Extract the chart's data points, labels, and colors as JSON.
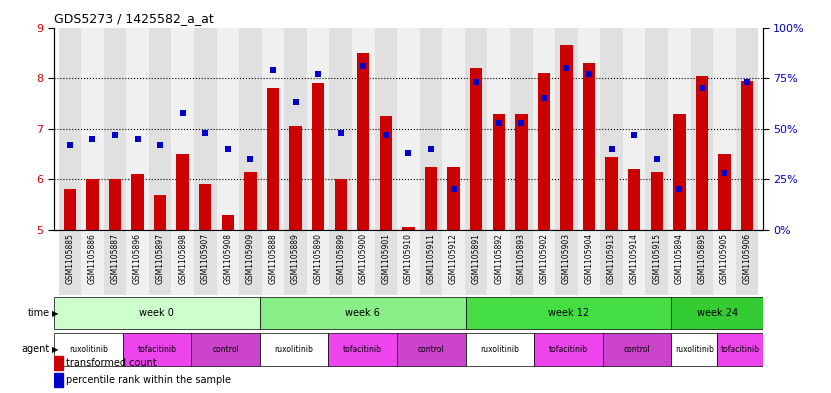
{
  "title": "GDS5273 / 1425582_a_at",
  "samples": [
    "GSM1105885",
    "GSM1105886",
    "GSM1105887",
    "GSM1105896",
    "GSM1105897",
    "GSM1105898",
    "GSM1105907",
    "GSM1105908",
    "GSM1105909",
    "GSM1105888",
    "GSM1105889",
    "GSM1105890",
    "GSM1105899",
    "GSM1105900",
    "GSM1105901",
    "GSM1105910",
    "GSM1105911",
    "GSM1105912",
    "GSM1105891",
    "GSM1105892",
    "GSM1105893",
    "GSM1105902",
    "GSM1105903",
    "GSM1105904",
    "GSM1105913",
    "GSM1105914",
    "GSM1105915",
    "GSM1105894",
    "GSM1105895",
    "GSM1105905",
    "GSM1105906"
  ],
  "bar_values": [
    5.8,
    6.0,
    6.0,
    6.1,
    5.7,
    6.5,
    5.9,
    5.3,
    6.15,
    7.8,
    7.05,
    7.9,
    6.0,
    8.5,
    7.25,
    5.05,
    6.25,
    6.25,
    8.2,
    7.3,
    7.3,
    8.1,
    8.65,
    8.3,
    6.45,
    6.2,
    6.15,
    7.3,
    8.05,
    6.5,
    7.95
  ],
  "dot_values": [
    42,
    45,
    47,
    45,
    42,
    58,
    48,
    40,
    35,
    79,
    63,
    77,
    48,
    81,
    47,
    38,
    40,
    20,
    73,
    53,
    53,
    65,
    80,
    77,
    40,
    47,
    35,
    20,
    70,
    28,
    73
  ],
  "ylim_left": [
    5,
    9
  ],
  "ylim_right": [
    0,
    100
  ],
  "yticks_left": [
    5,
    6,
    7,
    8,
    9
  ],
  "yticks_right": [
    0,
    25,
    50,
    75,
    100
  ],
  "bar_color": "#cc0000",
  "dot_color": "#0000cc",
  "time_groups": [
    {
      "label": "week 0",
      "start": 0,
      "end": 9,
      "color": "#ccffcc"
    },
    {
      "label": "week 6",
      "start": 9,
      "end": 18,
      "color": "#88ee88"
    },
    {
      "label": "week 12",
      "start": 18,
      "end": 27,
      "color": "#44dd44"
    },
    {
      "label": "week 24",
      "start": 27,
      "end": 31,
      "color": "#33cc33"
    }
  ],
  "agent_groups": [
    {
      "label": "ruxolitinib",
      "start": 0,
      "end": 3,
      "color": "#ffffff"
    },
    {
      "label": "tofacitinib",
      "start": 3,
      "end": 6,
      "color": "#ee44ee"
    },
    {
      "label": "control",
      "start": 6,
      "end": 9,
      "color": "#cc44cc"
    },
    {
      "label": "ruxolitinib",
      "start": 9,
      "end": 12,
      "color": "#ffffff"
    },
    {
      "label": "tofacitinib",
      "start": 12,
      "end": 15,
      "color": "#ee44ee"
    },
    {
      "label": "control",
      "start": 15,
      "end": 18,
      "color": "#cc44cc"
    },
    {
      "label": "ruxolitinib",
      "start": 18,
      "end": 21,
      "color": "#ffffff"
    },
    {
      "label": "tofacitinib",
      "start": 21,
      "end": 24,
      "color": "#ee44ee"
    },
    {
      "label": "control",
      "start": 24,
      "end": 27,
      "color": "#cc44cc"
    },
    {
      "label": "ruxolitinib",
      "start": 27,
      "end": 29,
      "color": "#ffffff"
    },
    {
      "label": "tofacitinib",
      "start": 29,
      "end": 31,
      "color": "#ee44ee"
    }
  ],
  "col_bg_even": "#e0e0e0",
  "col_bg_odd": "#f0f0f0"
}
